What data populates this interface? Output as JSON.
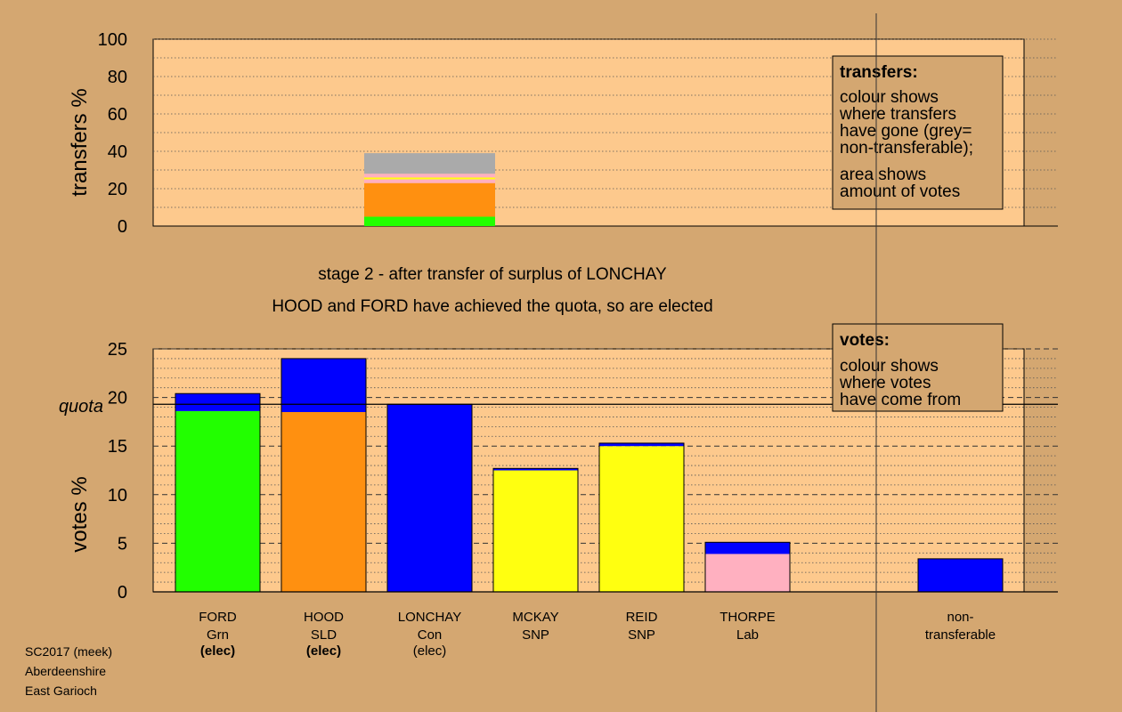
{
  "chart_data": [
    {
      "type": "bar",
      "stacked": true,
      "ylabel": "transfers %",
      "ylim": [
        0,
        100
      ],
      "yticks": [
        "0",
        "20",
        "40",
        "60",
        "80",
        "100"
      ],
      "grid": "dotted",
      "segments": [
        {
          "color": "#22ff00",
          "from": 0,
          "to": 5
        },
        {
          "color": "#ff9010",
          "from": 5,
          "to": 23
        },
        {
          "color": "#ffb0c0",
          "from": 23,
          "to": 25
        },
        {
          "color": "#ffff10",
          "from": 25,
          "to": 26
        },
        {
          "color": "#ffb0c0",
          "from": 26,
          "to": 28
        },
        {
          "color": "#aaaaaa",
          "from": 28,
          "to": 39
        }
      ],
      "legend": {
        "placement": "top-right",
        "title": "transfers:",
        "lines1": [
          "colour shows",
          "where transfers",
          "have gone (grey=",
          "non-transferable);"
        ],
        "lines2": [
          "area shows",
          "amount of votes"
        ]
      }
    },
    {
      "type": "bar",
      "stacked": true,
      "ylabel": "votes %",
      "ylim": [
        0,
        25
      ],
      "yticks": [
        "0",
        "5",
        "10",
        "15",
        "20",
        "25"
      ],
      "quota": 19.3,
      "quota_label": "quota",
      "grid": "dashed",
      "candidates": [
        {
          "name": "FORD",
          "party": "Grn",
          "status": "(elec)",
          "status_bold": true,
          "segments": [
            {
              "color": "#22ff00",
              "value": 18.6
            },
            {
              "color": "#0000ff",
              "value": 1.8
            }
          ]
        },
        {
          "name": "HOOD",
          "party": "SLD",
          "status": "(elec)",
          "status_bold": true,
          "segments": [
            {
              "color": "#ff9010",
              "value": 18.5
            },
            {
              "color": "#0000ff",
              "value": 5.5
            }
          ]
        },
        {
          "name": "LONCHAY",
          "party": "Con",
          "status": "(elec)",
          "status_bold": false,
          "segments": [
            {
              "color": "#0000ff",
              "value": 19.3
            }
          ]
        },
        {
          "name": "MCKAY",
          "party": "SNP",
          "status": "",
          "status_bold": false,
          "segments": [
            {
              "color": "#ffff10",
              "value": 12.5
            },
            {
              "color": "#0000ff",
              "value": 0.2
            }
          ]
        },
        {
          "name": "REID",
          "party": "SNP",
          "status": "",
          "status_bold": false,
          "segments": [
            {
              "color": "#ffff10",
              "value": 15.0
            },
            {
              "color": "#0000ff",
              "value": 0.3
            }
          ]
        },
        {
          "name": "THORPE",
          "party": "Lab",
          "status": "",
          "status_bold": false,
          "segments": [
            {
              "color": "#ffb0c0",
              "value": 3.9
            },
            {
              "color": "#0000ff",
              "value": 1.2
            }
          ]
        }
      ],
      "nontransferable": {
        "label_line1": "non-",
        "label_line2": "transferable",
        "segments": [
          {
            "color": "#0000ff",
            "value": 3.4
          }
        ]
      },
      "legend": {
        "placement": "top-right",
        "title": "votes:",
        "lines": [
          "colour shows",
          "where votes",
          "have come from"
        ]
      }
    }
  ],
  "stage_title": "stage 2 - after transfer of surplus of LONCHAY",
  "stage_subtitle": "HOOD and FORD have achieved the quota, so are elected",
  "footer": [
    "SC2017 (meek)",
    "Aberdeenshire",
    "East Garioch"
  ],
  "colors": {
    "background": "#d4a771",
    "plot_background": "#fdc98d",
    "legend_background": "#d4a771"
  }
}
